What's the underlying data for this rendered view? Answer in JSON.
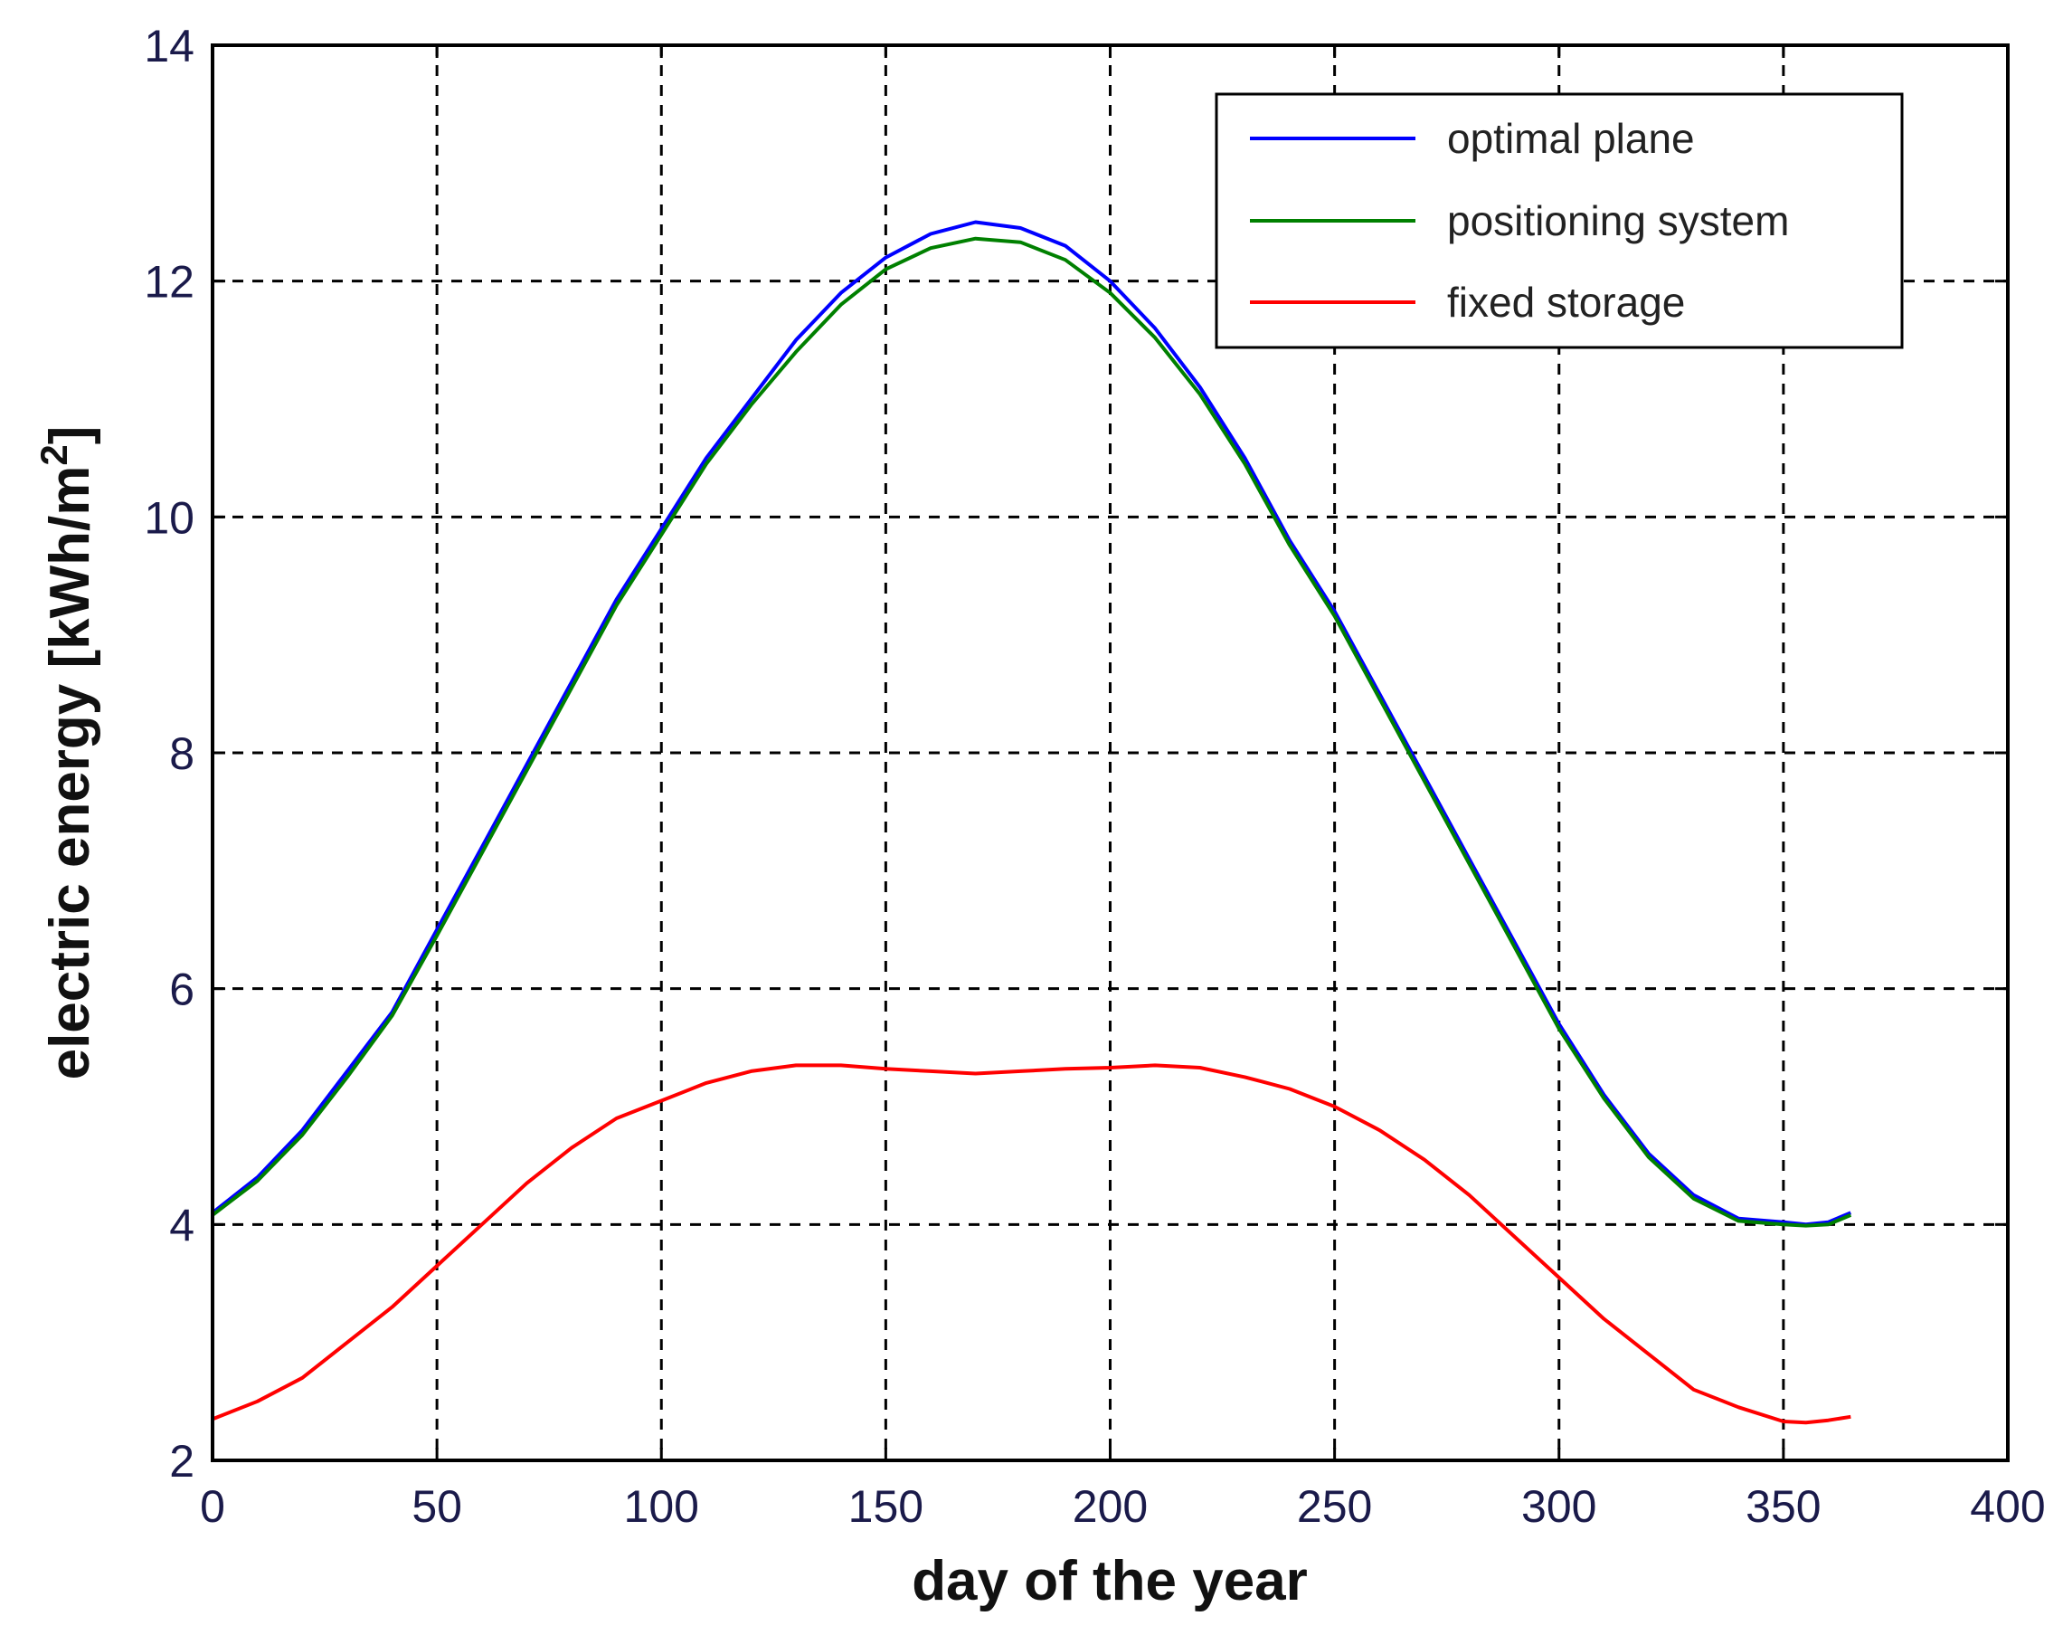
{
  "chart_data": {
    "type": "line",
    "xlabel": "day of the year",
    "ylabel": "electric energy [kWh/m",
    "ylabel_sup": "2",
    "ylabel_end": "]",
    "xlim": [
      0,
      400
    ],
    "ylim": [
      2,
      14
    ],
    "xticks": [
      0,
      50,
      100,
      150,
      200,
      250,
      300,
      350,
      400
    ],
    "yticks": [
      2,
      4,
      6,
      8,
      10,
      12,
      14
    ],
    "xtick_labels": [
      "0",
      "50",
      "100",
      "150",
      "200",
      "250",
      "300",
      "350",
      "400"
    ],
    "ytick_labels": [
      "2",
      "4",
      "6",
      "8",
      "10",
      "12",
      "14"
    ],
    "grid": true,
    "legend_position": "top-right",
    "series": [
      {
        "name": "optimal plane",
        "color": "#0000ff",
        "x": [
          0,
          10,
          20,
          30,
          40,
          50,
          60,
          70,
          80,
          90,
          100,
          110,
          120,
          130,
          140,
          150,
          160,
          170,
          180,
          190,
          200,
          210,
          220,
          230,
          240,
          250,
          260,
          270,
          280,
          290,
          300,
          310,
          320,
          330,
          340,
          350,
          355,
          360,
          365
        ],
        "values": [
          4.1,
          4.4,
          4.8,
          5.3,
          5.8,
          6.5,
          7.2,
          7.9,
          8.6,
          9.3,
          9.9,
          10.5,
          11.0,
          11.5,
          11.9,
          12.2,
          12.4,
          12.5,
          12.45,
          12.3,
          12.0,
          11.6,
          11.1,
          10.5,
          9.8,
          9.2,
          8.5,
          7.8,
          7.1,
          6.4,
          5.7,
          5.1,
          4.6,
          4.25,
          4.05,
          4.02,
          4.0,
          4.02,
          4.1
        ]
      },
      {
        "name": "positioning system",
        "color": "#008000",
        "x": [
          0,
          10,
          20,
          30,
          40,
          50,
          60,
          70,
          80,
          90,
          100,
          110,
          120,
          130,
          140,
          150,
          160,
          170,
          180,
          190,
          200,
          210,
          220,
          230,
          240,
          250,
          260,
          270,
          280,
          290,
          300,
          310,
          320,
          330,
          340,
          350,
          355,
          360,
          365
        ],
        "values": [
          4.08,
          4.37,
          4.76,
          5.25,
          5.77,
          6.45,
          7.15,
          7.85,
          8.55,
          9.25,
          9.85,
          10.45,
          10.95,
          11.4,
          11.8,
          12.1,
          12.28,
          12.36,
          12.33,
          12.18,
          11.9,
          11.52,
          11.04,
          10.45,
          9.76,
          9.16,
          8.46,
          7.76,
          7.06,
          6.36,
          5.66,
          5.07,
          4.57,
          4.22,
          4.03,
          4.0,
          3.99,
          4.0,
          4.08
        ]
      },
      {
        "name": "fixed storage",
        "color": "#ff0000",
        "x": [
          0,
          10,
          20,
          30,
          40,
          50,
          60,
          70,
          80,
          90,
          100,
          110,
          120,
          130,
          140,
          150,
          160,
          170,
          180,
          190,
          200,
          210,
          220,
          230,
          240,
          250,
          260,
          270,
          280,
          290,
          300,
          310,
          320,
          330,
          340,
          350,
          355,
          360,
          365
        ],
        "values": [
          2.35,
          2.5,
          2.7,
          3.0,
          3.3,
          3.65,
          4.0,
          4.35,
          4.65,
          4.9,
          5.05,
          5.2,
          5.3,
          5.35,
          5.35,
          5.32,
          5.3,
          5.28,
          5.3,
          5.32,
          5.33,
          5.35,
          5.33,
          5.25,
          5.15,
          5.0,
          4.8,
          4.55,
          4.25,
          3.9,
          3.55,
          3.2,
          2.9,
          2.6,
          2.45,
          2.33,
          2.32,
          2.34,
          2.37
        ]
      }
    ]
  }
}
